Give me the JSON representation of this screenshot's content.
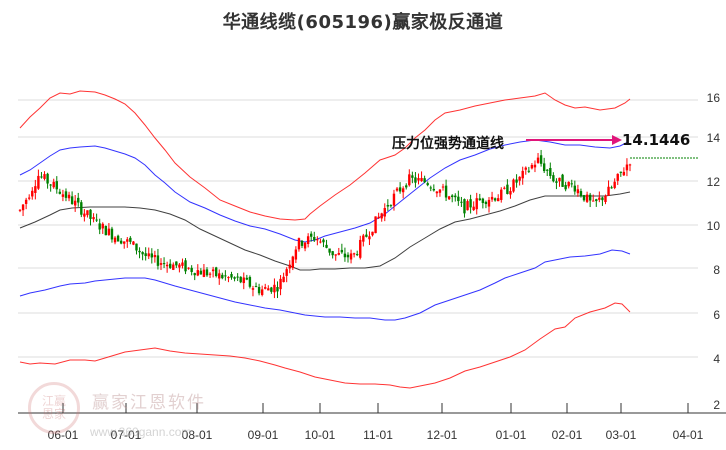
{
  "title": "华通线缆(605196)赢家极反通道",
  "annotation": {
    "label": "压力位强势通道线",
    "value": "14.1446",
    "arrow_color": "#e0157a"
  },
  "watermark": {
    "logo_text": "江赢恩家",
    "name": "赢家江恩软件",
    "url": "www.360gann.com"
  },
  "colors": {
    "up": "#ff0000",
    "down": "#008000",
    "outer_band": "#ff0000",
    "inner_band": "#0000ff",
    "mid_line": "#000000",
    "grid": "#dddddd",
    "last_price_line": "#008000"
  },
  "chart_data": {
    "type": "line",
    "title": "华通线缆(605196)赢家极反通道",
    "xlabel": "",
    "ylabel": "",
    "ylim": [
      2,
      17
    ],
    "grid": true,
    "y_ticks": [
      2,
      4,
      6,
      8,
      10,
      12,
      14,
      16
    ],
    "x_ticks": [
      "06-01",
      "07-01",
      "08-01",
      "09-01",
      "10-01",
      "11-01",
      "12-01",
      "01-01",
      "02-01",
      "03-01",
      "04-01"
    ],
    "annotations": [
      {
        "text": "压力位强势通道线",
        "value": 14.1446
      }
    ],
    "series": [
      {
        "name": "upper_outer_red",
        "x": [
          "05-15",
          "06-01",
          "06-15",
          "07-01",
          "07-15",
          "08-01",
          "08-15",
          "09-01",
          "09-15",
          "09-25",
          "10-01",
          "10-15",
          "11-01",
          "11-15",
          "12-01",
          "12-15",
          "01-01",
          "01-15",
          "02-01",
          "02-15",
          "03-01",
          "03-10"
        ],
        "values": [
          13.0,
          14.2,
          15.4,
          15.6,
          15.5,
          15.1,
          14.0,
          12.5,
          11.3,
          10.7,
          10.8,
          11.4,
          11.7,
          12.5,
          14.0,
          15.0,
          15.5,
          15.9,
          16.3,
          15.8,
          15.5,
          16.0
        ]
      },
      {
        "name": "upper_inner_blue",
        "x": [
          "05-15",
          "06-01",
          "06-15",
          "07-01",
          "07-15",
          "08-01",
          "08-15",
          "09-01",
          "09-15",
          "09-25",
          "10-01",
          "10-15",
          "11-01",
          "11-15",
          "12-01",
          "12-15",
          "01-01",
          "01-15",
          "02-01",
          "02-15",
          "03-01",
          "03-10"
        ],
        "values": [
          11.4,
          12.7,
          13.6,
          13.8,
          13.7,
          13.3,
          12.4,
          11.3,
          10.4,
          9.8,
          9.9,
          10.3,
          10.5,
          11.3,
          12.6,
          13.4,
          13.8,
          14.1,
          14.0,
          13.9,
          13.8,
          14.1
        ]
      },
      {
        "name": "middle_black",
        "x": [
          "05-15",
          "06-01",
          "06-15",
          "07-01",
          "07-15",
          "08-01",
          "08-15",
          "09-01",
          "09-15",
          "09-25",
          "10-01",
          "10-15",
          "11-01",
          "11-15",
          "12-01",
          "12-15",
          "01-01",
          "01-15",
          "02-01",
          "02-15",
          "03-01",
          "03-10"
        ],
        "values": [
          10.1,
          10.6,
          11.1,
          11.1,
          11.1,
          10.9,
          10.5,
          9.6,
          8.9,
          8.3,
          8.4,
          8.5,
          8.5,
          9.0,
          10.1,
          10.8,
          11.2,
          11.6,
          11.8,
          11.8,
          11.8,
          11.9
        ]
      },
      {
        "name": "lower_inner_blue",
        "x": [
          "05-15",
          "06-01",
          "06-15",
          "07-01",
          "07-15",
          "08-01",
          "08-15",
          "09-01",
          "09-15",
          "09-25",
          "10-01",
          "10-15",
          "11-01",
          "11-15",
          "12-01",
          "12-15",
          "01-01",
          "01-15",
          "02-01",
          "02-15",
          "03-01",
          "03-10"
        ],
        "values": [
          7.0,
          7.3,
          7.6,
          7.9,
          8.1,
          8.2,
          7.9,
          7.5,
          7.0,
          6.6,
          6.4,
          6.3,
          6.2,
          6.6,
          7.3,
          8.0,
          8.6,
          9.0,
          9.4,
          9.6,
          9.3,
          9.1
        ]
      },
      {
        "name": "lower_outer_red",
        "x": [
          "05-15",
          "06-01",
          "06-15",
          "07-01",
          "07-15",
          "08-01",
          "08-15",
          "09-01",
          "09-15",
          "09-25",
          "10-01",
          "10-15",
          "11-01",
          "11-15",
          "12-01",
          "12-15",
          "01-01",
          "01-15",
          "02-01",
          "02-15",
          "03-01",
          "03-10"
        ],
        "values": [
          4.3,
          4.3,
          4.6,
          5.3,
          5.7,
          5.8,
          5.6,
          5.1,
          4.5,
          4.2,
          3.9,
          4.2,
          4.0,
          4.5,
          5.2,
          5.9,
          6.6,
          7.0,
          7.0,
          7.2,
          6.9,
          6.6
        ]
      },
      {
        "name": "close_price",
        "x": [
          "05-15",
          "05-25",
          "06-01",
          "06-10",
          "06-20",
          "07-01",
          "07-10",
          "07-20",
          "08-01",
          "08-10",
          "08-20",
          "09-01",
          "09-10",
          "09-20",
          "09-25",
          "10-01",
          "10-10",
          "10-20",
          "11-01",
          "11-10",
          "11-20",
          "12-01",
          "12-10",
          "12-20",
          "01-01",
          "01-10",
          "01-20",
          "02-01",
          "02-08",
          "02-15",
          "02-25",
          "03-01",
          "03-05",
          "03-10"
        ],
        "values": [
          11.0,
          12.6,
          12.0,
          11.3,
          10.5,
          9.9,
          9.5,
          8.8,
          8.6,
          8.4,
          8.2,
          8.0,
          7.8,
          7.4,
          7.6,
          9.5,
          9.8,
          9.0,
          8.9,
          10.2,
          11.4,
          12.4,
          12.3,
          11.8,
          11.1,
          11.5,
          11.7,
          12.4,
          13.3,
          12.3,
          12.1,
          11.2,
          12.0,
          13.3
        ]
      }
    ],
    "last_price_line": 13.3
  }
}
